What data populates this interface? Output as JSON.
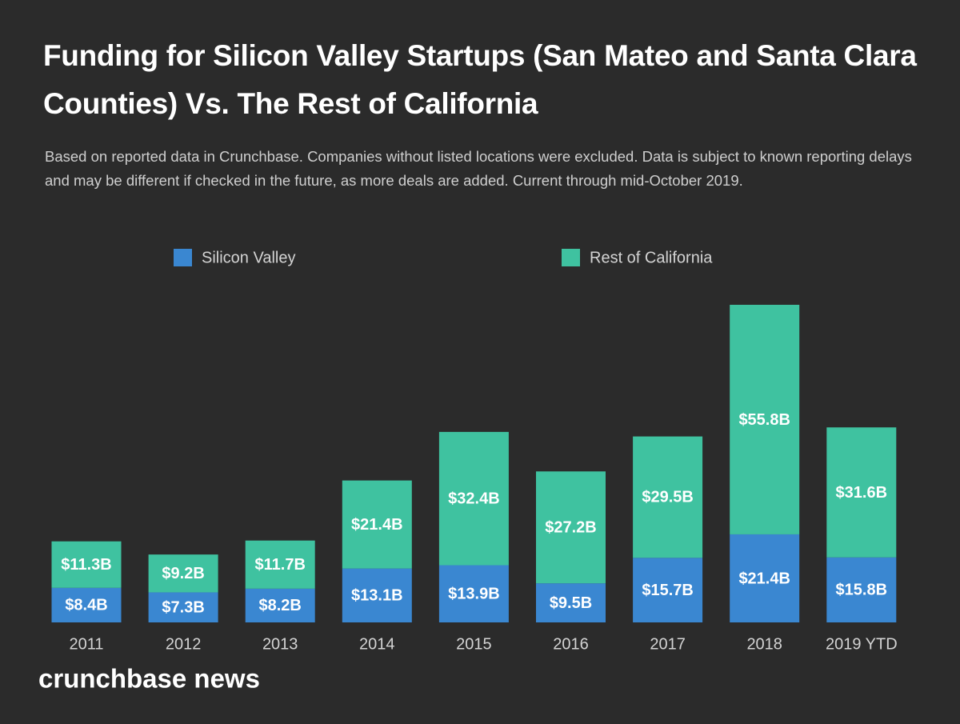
{
  "chart_data": {
    "type": "stacked_bar",
    "title": "Funding for Silicon Valley Startups (San Mateo and Santa Clara Counties) Vs. The Rest of California",
    "subtitle": "Based on reported data in Crunchbase. Companies without listed locations were excluded. Data is subject to known reporting delays and may be different if checked in the future, as more deals are added. Current through mid-October 2019.",
    "source": "crunchbase news",
    "categories": [
      "2011",
      "2012",
      "2013",
      "2014",
      "2015",
      "2016",
      "2017",
      "2018",
      "2019 YTD"
    ],
    "series": [
      {
        "name": "Silicon Valley",
        "color": "#3a87d1",
        "values": [
          8.4,
          7.3,
          8.2,
          13.1,
          13.9,
          9.5,
          15.7,
          21.4,
          15.8
        ],
        "value_labels": [
          "$8.4B",
          "$7.3B",
          "$8.2B",
          "$13.1B",
          "$13.9B",
          "$9.5B",
          "$15.7B",
          "$21.4B",
          "$15.8B"
        ]
      },
      {
        "name": "Rest of California",
        "color": "#3fc2a0",
        "values": [
          11.3,
          9.2,
          11.7,
          21.4,
          32.4,
          27.2,
          29.5,
          55.8,
          31.6
        ],
        "value_labels": [
          "$11.3B",
          "$9.2B",
          "$11.7B",
          "$21.4B",
          "$32.4B",
          "$27.2B",
          "$29.5B",
          "$55.8B",
          "$31.6B"
        ]
      }
    ]
  }
}
